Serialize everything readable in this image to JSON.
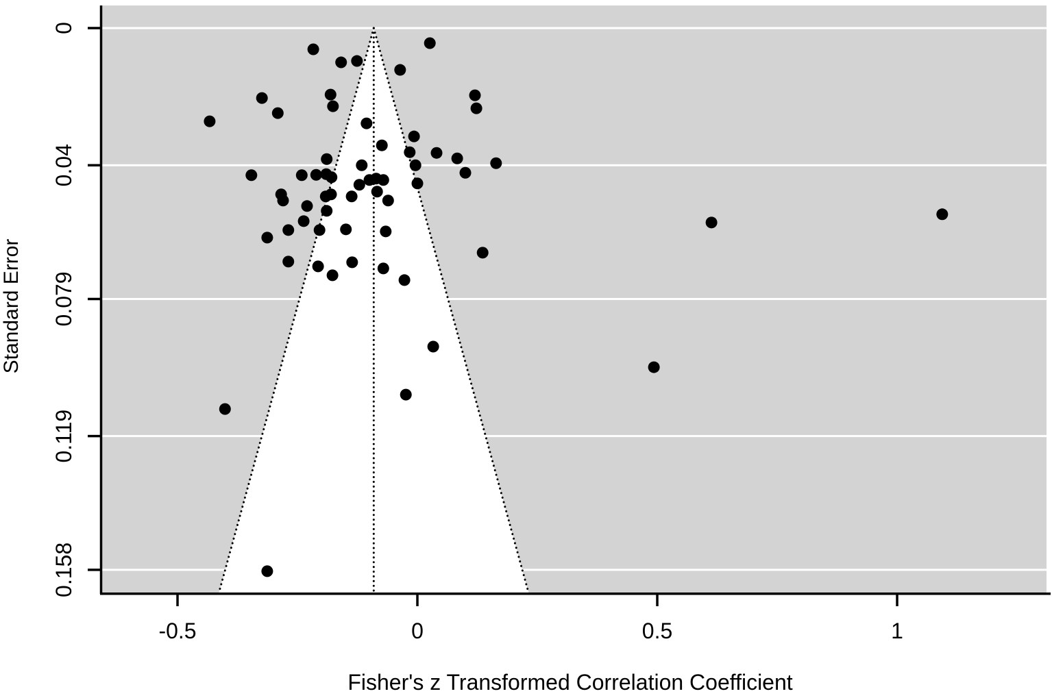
{
  "figure": {
    "kind": "funnel-plot",
    "x_axis_title": "Fisher's z Transformed Correlation Coefficient",
    "y_axis_title": "Standard Error"
  },
  "colors": {
    "panel": "#d3d3d3",
    "grid": "#ffffff",
    "funnel_fill": "#ffffff",
    "funnel_line": "#000000",
    "dot": "#000000",
    "axis": "#000000",
    "background": "#ffffff"
  },
  "chart_data": {
    "type": "scatter",
    "title": "",
    "xlabel": "Fisher's z Transformed Correlation Coefficient",
    "ylabel": "Standard Error",
    "x_ticks": [
      -0.5,
      0,
      0.5,
      1
    ],
    "x_tick_labels": [
      "-0.5",
      "0",
      "0.5",
      "1"
    ],
    "y_ticks": [
      0,
      0.04,
      0.079,
      0.119,
      0.158
    ],
    "y_tick_labels": [
      "0",
      "0.04",
      "0.079",
      "0.119",
      "0.158"
    ],
    "xlim": [
      -0.6586,
      1.3114
    ],
    "ylim_se": [
      -0.00659,
      0.16481
    ],
    "y_axis_direction": "standard error increases downward",
    "grid": true,
    "legend": false,
    "funnel": {
      "center_estimate": -0.091,
      "ci_multiplier": 1.96,
      "apex_se": 0,
      "line_style": "dotted",
      "has_center_line": true
    },
    "points": [
      {
        "z": -0.217,
        "se": 0.0062
      },
      {
        "z": -0.159,
        "se": 0.01
      },
      {
        "z": -0.126,
        "se": 0.0096
      },
      {
        "z": 0.026,
        "se": 0.0044
      },
      {
        "z": -0.036,
        "se": 0.0122
      },
      {
        "z": -0.324,
        "se": 0.0204
      },
      {
        "z": -0.181,
        "se": 0.0194
      },
      {
        "z": -0.176,
        "se": 0.0228
      },
      {
        "z": -0.291,
        "se": 0.0248
      },
      {
        "z": -0.433,
        "se": 0.0272
      },
      {
        "z": 0.12,
        "se": 0.0196
      },
      {
        "z": 0.123,
        "se": 0.0234
      },
      {
        "z": -0.106,
        "se": 0.0278
      },
      {
        "z": -0.074,
        "se": 0.0342
      },
      {
        "z": -0.007,
        "se": 0.0316
      },
      {
        "z": -0.016,
        "se": 0.0362
      },
      {
        "z": 0.04,
        "se": 0.0364
      },
      {
        "z": 0.083,
        "se": 0.038
      },
      {
        "z": 0.1,
        "se": 0.0422
      },
      {
        "z": 0.164,
        "se": 0.0394
      },
      {
        "z": -0.004,
        "se": 0.04
      },
      {
        "z": 0.0,
        "se": 0.0453
      },
      {
        "z": -0.189,
        "se": 0.0382
      },
      {
        "z": -0.116,
        "se": 0.04
      },
      {
        "z": -0.346,
        "se": 0.0429
      },
      {
        "z": -0.241,
        "se": 0.0429
      },
      {
        "z": -0.211,
        "se": 0.0428
      },
      {
        "z": -0.19,
        "se": 0.0426
      },
      {
        "z": -0.179,
        "se": 0.0435
      },
      {
        "z": -0.121,
        "se": 0.0457
      },
      {
        "z": -0.1,
        "se": 0.0443
      },
      {
        "z": -0.086,
        "se": 0.0439
      },
      {
        "z": -0.071,
        "se": 0.0443
      },
      {
        "z": -0.084,
        "se": 0.0477
      },
      {
        "z": -0.061,
        "se": 0.0503
      },
      {
        "z": -0.284,
        "se": 0.0485
      },
      {
        "z": -0.28,
        "se": 0.0503
      },
      {
        "z": -0.23,
        "se": 0.0519
      },
      {
        "z": -0.191,
        "se": 0.0491
      },
      {
        "z": -0.18,
        "se": 0.0485
      },
      {
        "z": -0.137,
        "se": 0.0491
      },
      {
        "z": -0.189,
        "se": 0.0533
      },
      {
        "z": -0.269,
        "se": 0.0589
      },
      {
        "z": -0.237,
        "se": 0.0563
      },
      {
        "z": -0.204,
        "se": 0.0589
      },
      {
        "z": -0.313,
        "se": 0.0611
      },
      {
        "z": -0.149,
        "se": 0.0587
      },
      {
        "z": -0.066,
        "se": 0.0593
      },
      {
        "z": -0.269,
        "se": 0.0681
      },
      {
        "z": -0.207,
        "se": 0.0695
      },
      {
        "z": -0.177,
        "se": 0.0721
      },
      {
        "z": -0.136,
        "se": 0.0683
      },
      {
        "z": -0.071,
        "se": 0.0701
      },
      {
        "z": -0.027,
        "se": 0.0735
      },
      {
        "z": 0.136,
        "se": 0.0655
      },
      {
        "z": 0.033,
        "se": 0.0929
      },
      {
        "z": -0.024,
        "se": 0.1069
      },
      {
        "z": -0.401,
        "se": 0.1111
      },
      {
        "z": -0.313,
        "se": 0.1584
      },
      {
        "z": 0.493,
        "se": 0.0989
      },
      {
        "z": 0.613,
        "se": 0.0567
      },
      {
        "z": 1.094,
        "se": 0.0543
      }
    ]
  }
}
